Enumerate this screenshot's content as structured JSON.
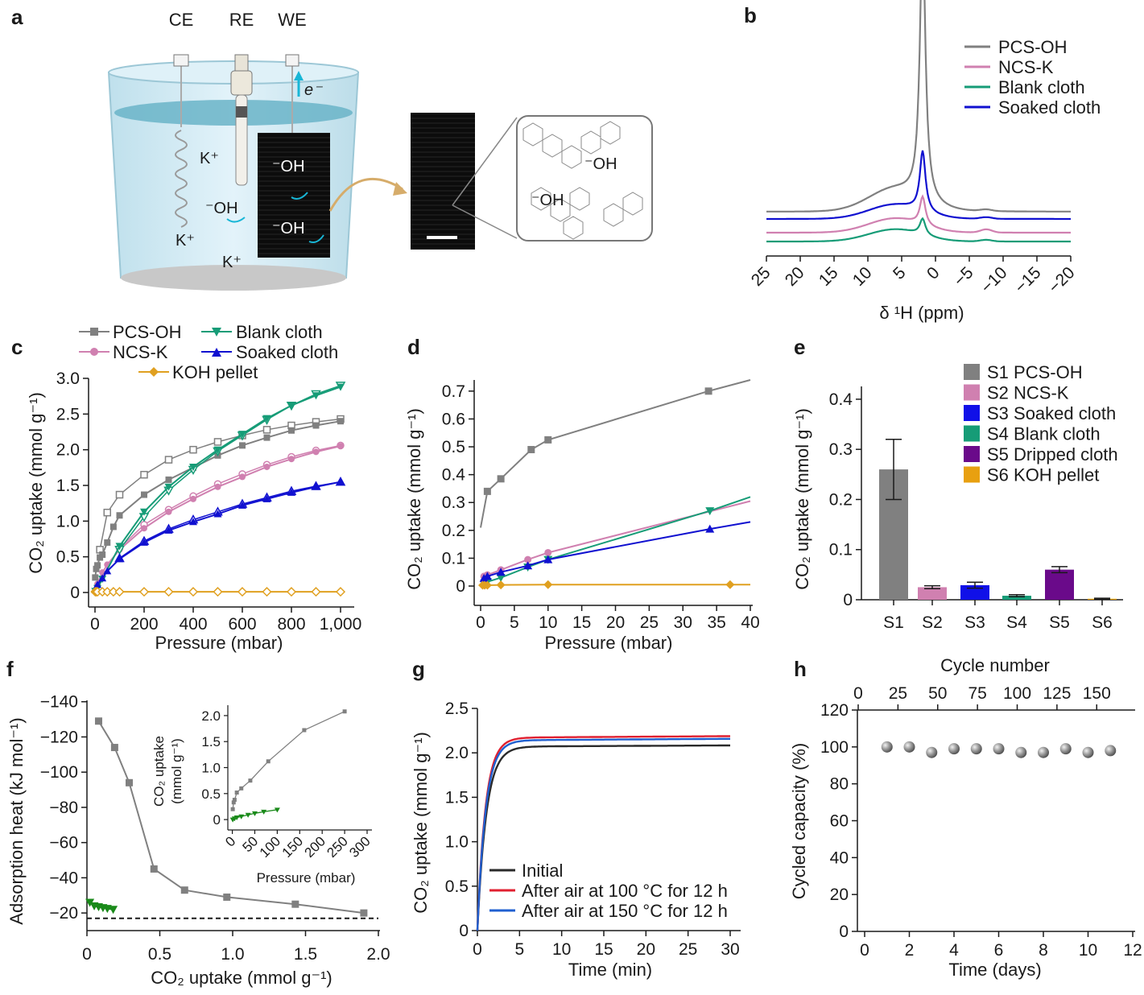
{
  "panel_labels": [
    "a",
    "b",
    "c",
    "d",
    "e",
    "f",
    "g",
    "h"
  ],
  "schematic": {
    "electrodes": [
      "CE",
      "RE",
      "WE"
    ],
    "electron": "e⁻",
    "ions": [
      "K⁺",
      "K⁺",
      "K⁺",
      "⁻OH",
      "⁻OH",
      "⁻OH",
      "⁻OH",
      "⁻OH"
    ]
  },
  "chart_data": [
    {
      "id": "b",
      "type": "line",
      "xlabel": "δ ¹H (ppm)",
      "ylabel": "",
      "x_reversed": true,
      "xticks": [
        "25",
        "20",
        "15",
        "10",
        "5",
        "0",
        "−5",
        "−10",
        "−15",
        "−20"
      ],
      "series": [
        {
          "name": "PCS-OH",
          "color": "#808080",
          "baseline": 0.74,
          "broad": 0.55,
          "peak": 6.6
        },
        {
          "name": "Soaked cloth",
          "color": "#1010d0",
          "baseline": 0.56,
          "broad": 0.35,
          "peak": 1.5
        },
        {
          "name": "NCS-K",
          "color": "#d080b0",
          "baseline": 0.22,
          "broad": 0.35,
          "peak": 0.7
        },
        {
          "name": "Blank cloth",
          "color": "#169c77",
          "baseline": 0.0,
          "broad": 0.3,
          "peak": 0.4
        }
      ]
    },
    {
      "id": "c",
      "type": "line",
      "xlabel": "Pressure (mbar)",
      "ylabel": "CO₂ uptake (mmol g⁻¹)",
      "xlim": [
        0,
        1000
      ],
      "ylim": [
        0,
        3.0
      ],
      "xticks": [
        "0",
        "200",
        "400",
        "600",
        "800",
        "1,000"
      ],
      "yticks": [
        "0",
        "0.5",
        "1.0",
        "1.5",
        "2.0",
        "2.5",
        "3.0"
      ],
      "series": [
        {
          "name": "PCS-OH",
          "color": "#808080",
          "marker": "square",
          "x": [
            1,
            5,
            10,
            20,
            30,
            50,
            75,
            100,
            200,
            300,
            400,
            500,
            600,
            700,
            800,
            900,
            1000
          ],
          "y": [
            0.21,
            0.33,
            0.38,
            0.49,
            0.53,
            0.7,
            0.92,
            1.08,
            1.37,
            1.58,
            1.75,
            1.92,
            2.06,
            2.17,
            2.27,
            2.34,
            2.4
          ],
          "x2": [
            20,
            50,
            100,
            200,
            300,
            400,
            500,
            600,
            700,
            800,
            900,
            1000
          ],
          "y2": [
            0.6,
            1.12,
            1.37,
            1.65,
            1.86,
            2.0,
            2.11,
            2.2,
            2.28,
            2.34,
            2.39,
            2.43
          ]
        },
        {
          "name": "NCS-K",
          "color": "#d080b0",
          "marker": "circle",
          "x": [
            1,
            10,
            30,
            50,
            100,
            200,
            300,
            400,
            500,
            600,
            700,
            800,
            900,
            1000
          ],
          "y": [
            0.03,
            0.12,
            0.28,
            0.39,
            0.6,
            0.9,
            1.13,
            1.31,
            1.48,
            1.62,
            1.76,
            1.87,
            1.97,
            2.05
          ],
          "x2": [
            100,
            200,
            300,
            400,
            500,
            600,
            700,
            800,
            900,
            1000
          ],
          "y2": [
            0.62,
            0.95,
            1.16,
            1.35,
            1.52,
            1.66,
            1.79,
            1.9,
            1.99,
            2.06
          ]
        },
        {
          "name": "Blank cloth",
          "color": "#169c77",
          "marker": "triangle-down",
          "x": [
            1,
            10,
            30,
            100,
            200,
            300,
            400,
            500,
            600,
            700,
            800,
            900,
            1000
          ],
          "y": [
            0.02,
            0.06,
            0.19,
            0.65,
            1.13,
            1.48,
            1.76,
            2.0,
            2.22,
            2.44,
            2.62,
            2.76,
            2.88
          ],
          "x2": [
            100,
            200,
            300,
            400,
            500,
            600,
            700,
            800,
            900,
            1000
          ],
          "y2": [
            0.6,
            1.06,
            1.43,
            1.72,
            1.98,
            2.2,
            2.42,
            2.62,
            2.78,
            2.9
          ]
        },
        {
          "name": "Soaked cloth",
          "color": "#1010d0",
          "marker": "triangle-up",
          "x": [
            1,
            10,
            30,
            50,
            100,
            200,
            300,
            400,
            500,
            600,
            700,
            800,
            900,
            1000
          ],
          "y": [
            0.04,
            0.11,
            0.2,
            0.3,
            0.47,
            0.7,
            0.87,
            0.99,
            1.1,
            1.22,
            1.31,
            1.4,
            1.48,
            1.55
          ],
          "x2": [
            100,
            200,
            300,
            400,
            500,
            600,
            700,
            800,
            900,
            1000
          ],
          "y2": [
            0.48,
            0.72,
            0.89,
            1.02,
            1.13,
            1.24,
            1.33,
            1.42,
            1.49,
            1.55
          ]
        },
        {
          "name": "KOH pellet",
          "color": "#e0a020",
          "marker": "diamond-open",
          "x": [
            1,
            5,
            10,
            30,
            50,
            75,
            100,
            200,
            300,
            400,
            500,
            600,
            700,
            800,
            900,
            1000
          ],
          "y": [
            0.01,
            0.01,
            0.01,
            0.01,
            0.01,
            0.01,
            0.01,
            0.01,
            0.01,
            0.01,
            0.01,
            0.01,
            0.01,
            0.01,
            0.01,
            0.01
          ]
        }
      ]
    },
    {
      "id": "d",
      "type": "line",
      "xlabel": "Pressure (mbar)",
      "ylabel": "CO₂ uptake (mmol g⁻¹)",
      "xlim": [
        0,
        40
      ],
      "ylim": [
        0,
        0.74
      ],
      "xticks": [
        "0",
        "5",
        "10",
        "15",
        "20",
        "25",
        "30",
        "35",
        "40"
      ],
      "yticks": [
        "0",
        "0.1",
        "0.2",
        "0.3",
        "0.4",
        "0.5",
        "0.6",
        "0.7"
      ],
      "series": [
        {
          "name": "PCS-OH",
          "color": "#808080",
          "marker": "square",
          "x": [
            0,
            1,
            3,
            7.5,
            10,
            33.8,
            40
          ],
          "y": [
            0.21,
            0.34,
            0.385,
            0.49,
            0.525,
            0.7,
            0.74
          ]
        },
        {
          "name": "NCS-K",
          "color": "#d080b0",
          "marker": "circle",
          "x": [
            0,
            0.5,
            1,
            3,
            7,
            10,
            40
          ],
          "y": [
            0.03,
            0.035,
            0.04,
            0.058,
            0.095,
            0.12,
            0.305
          ]
        },
        {
          "name": "Blank cloth",
          "color": "#169c77",
          "marker": "triangle-down",
          "x": [
            0,
            1,
            3,
            7,
            10,
            34,
            40
          ],
          "y": [
            0.01,
            0.015,
            0.03,
            0.068,
            0.095,
            0.27,
            0.32
          ]
        },
        {
          "name": "Soaked cloth",
          "color": "#1010d0",
          "marker": "triangle-up",
          "x": [
            0,
            0.5,
            1,
            3,
            7,
            10,
            34,
            40
          ],
          "y": [
            0.02,
            0.028,
            0.035,
            0.05,
            0.073,
            0.095,
            0.205,
            0.23
          ]
        },
        {
          "name": "KOH pellet",
          "color": "#e0a020",
          "marker": "diamond",
          "x": [
            0,
            0.3,
            0.6,
            1,
            3,
            10,
            37,
            40
          ],
          "y": [
            0.003,
            0.003,
            0.003,
            0.003,
            0.004,
            0.005,
            0.005,
            0.005
          ]
        }
      ]
    },
    {
      "id": "e",
      "type": "bar",
      "xlabel": "",
      "ylabel": "CO₂ uptake (mmol g⁻¹)",
      "ylim": [
        0,
        0.44
      ],
      "yticks": [
        "0",
        "0.1",
        "0.2",
        "0.3",
        "0.4"
      ],
      "categories": [
        "S1",
        "S2",
        "S3",
        "S4",
        "S5",
        "S6"
      ],
      "legend": [
        "S1 PCS-OH",
        "S2 NCS-K",
        "S3 Soaked cloth",
        "S4 Blank cloth",
        "S5 Dripped cloth",
        "S6 KOH pellet"
      ],
      "colors": [
        "#808080",
        "#d080b0",
        "#1010e8",
        "#169c77",
        "#6a0a8a",
        "#e8a010"
      ],
      "values": [
        0.26,
        0.025,
        0.029,
        0.008,
        0.06,
        0.002
      ],
      "errors": [
        0.06,
        0.003,
        0.006,
        0.002,
        0.006,
        0.001
      ]
    },
    {
      "id": "f",
      "type": "line",
      "xlabel": "CO₂ uptake (mmol g⁻¹)",
      "ylabel": "Adsorption heat (kJ mol⁻¹)",
      "xlim": [
        0,
        2.0
      ],
      "ylim": [
        -10,
        -145
      ],
      "xticks": [
        "0",
        "0.5",
        "1.0",
        "1.5",
        "2.0"
      ],
      "yticks": [
        "−20",
        "−40",
        "−60",
        "−80",
        "−100",
        "−120",
        "−140"
      ],
      "reference_line": -17,
      "series": [
        {
          "name": "PCS-OH",
          "color": "#808080",
          "marker": "square",
          "x": [
            0.08,
            0.19,
            0.29,
            0.46,
            0.67,
            0.96,
            1.43,
            1.9
          ],
          "y": [
            -129,
            -114,
            -94,
            -45,
            -33,
            -29,
            -25,
            -20
          ]
        },
        {
          "name": "Blank cloth",
          "color": "#1a8a1a",
          "marker": "triangle-down",
          "x": [
            0.02,
            0.05,
            0.08,
            0.11,
            0.14,
            0.18
          ],
          "y": [
            -26,
            -24,
            -23.5,
            -23,
            -22.5,
            -22
          ]
        }
      ],
      "inset": {
        "xlabel": "Pressure (mbar)",
        "ylabel": "CO₂ uptake (mmol g⁻¹)",
        "ylabel_line1": "CO₂ uptake",
        "ylabel_line2": "(mmol g⁻¹)",
        "xlim": [
          -10,
          300
        ],
        "ylim": [
          -0.2,
          2.2
        ],
        "xticks": [
          "0",
          "50",
          "100",
          "150",
          "200",
          "250",
          "300"
        ],
        "yticks": [
          "0",
          "0.5",
          "1.0",
          "1.5",
          "2.0"
        ],
        "series": [
          {
            "name": "PCS-OH",
            "color": "#808080",
            "x": [
              1,
              3,
              5,
              10,
              20,
              40,
              80,
              160,
              250
            ],
            "y": [
              0.2,
              0.33,
              0.38,
              0.52,
              0.6,
              0.75,
              1.12,
              1.72,
              2.08
            ]
          },
          {
            "name": "Blank cloth",
            "color": "#1a8a1a",
            "x": [
              1,
              5,
              10,
              20,
              35,
              50,
              70,
              100
            ],
            "y": [
              0.0,
              0.02,
              0.04,
              0.06,
              0.09,
              0.12,
              0.15,
              0.19
            ]
          }
        ]
      }
    },
    {
      "id": "g",
      "type": "line",
      "xlabel": "Time (min)",
      "ylabel": "CO₂ uptake (mmol g⁻¹)",
      "xlim": [
        0,
        30
      ],
      "ylim": [
        0,
        2.5
      ],
      "xticks": [
        "0",
        "5",
        "10",
        "15",
        "20",
        "25",
        "30"
      ],
      "yticks": [
        "0",
        "0.5",
        "1.0",
        "1.5",
        "2.0",
        "2.5"
      ],
      "series": [
        {
          "name": "Initial",
          "color": "#2a2a2a",
          "plateau": 2.07
        },
        {
          "name": "After air at 100 °C for 12 h",
          "color": "#e02030",
          "plateau": 2.17
        },
        {
          "name": "After air at 150 °C for 12 h",
          "color": "#2060d0",
          "plateau": 2.14
        }
      ]
    },
    {
      "id": "h",
      "type": "scatter",
      "xlabel": "Time (days)",
      "ylabel": "Cycled capacity (%)",
      "x2label": "Cycle number",
      "xlim": [
        0,
        12
      ],
      "ylim": [
        0,
        120
      ],
      "xticks": [
        "0",
        "2",
        "4",
        "6",
        "8",
        "10",
        "12"
      ],
      "x2ticks": [
        "0",
        "25",
        "50",
        "75",
        "100",
        "125",
        "150"
      ],
      "yticks": [
        "0",
        "20",
        "40",
        "60",
        "80",
        "100",
        "120"
      ],
      "x": [
        1,
        2,
        3,
        4,
        5,
        6,
        7,
        8,
        9,
        10,
        11
      ],
      "y": [
        100,
        100,
        97,
        99,
        99,
        99,
        97,
        97,
        99,
        97,
        98
      ]
    }
  ]
}
